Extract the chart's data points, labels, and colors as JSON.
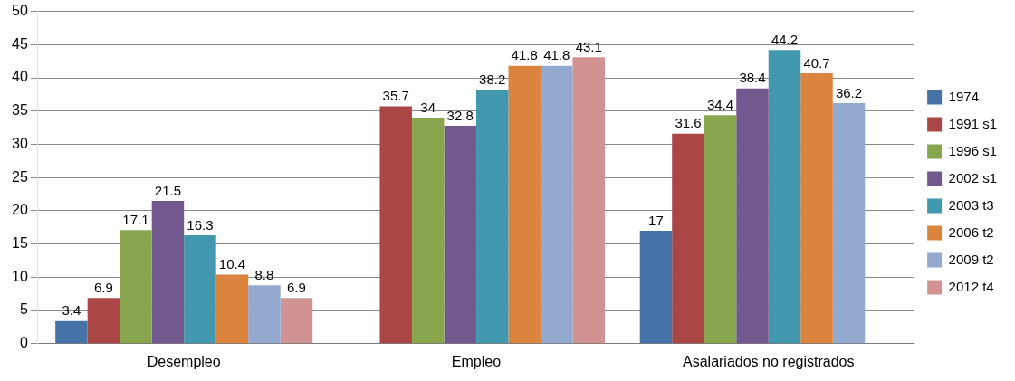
{
  "chart_data": {
    "type": "bar",
    "categories": [
      "Desempleo",
      "Empleo",
      "Asalariados no registrados"
    ],
    "series": [
      {
        "name": "1974",
        "color": "#4572a7",
        "values": [
          3.4,
          null,
          17
        ]
      },
      {
        "name": "1991 s1",
        "color": "#aa4643",
        "values": [
          6.9,
          35.7,
          31.6
        ]
      },
      {
        "name": "1996 s1",
        "color": "#89a54e",
        "values": [
          17.1,
          34,
          34.4
        ]
      },
      {
        "name": "2002 s1",
        "color": "#71588f",
        "values": [
          21.5,
          32.8,
          38.4
        ]
      },
      {
        "name": "2003 t3",
        "color": "#4198af",
        "values": [
          16.3,
          38.2,
          44.2
        ]
      },
      {
        "name": "2006 t2",
        "color": "#db843d",
        "values": [
          10.4,
          41.8,
          40.7
        ]
      },
      {
        "name": "2009 t2",
        "color": "#93a9cf",
        "values": [
          8.8,
          41.8,
          36.2
        ]
      },
      {
        "name": "2012 t4",
        "color": "#d19392",
        "values": [
          6.9,
          43.1,
          null
        ]
      }
    ],
    "ylim": [
      0,
      50
    ],
    "yticks": [
      0,
      5,
      10,
      15,
      20,
      25,
      30,
      35,
      40,
      45,
      50
    ],
    "grid": "y",
    "legend": "right",
    "data_labels": true
  }
}
